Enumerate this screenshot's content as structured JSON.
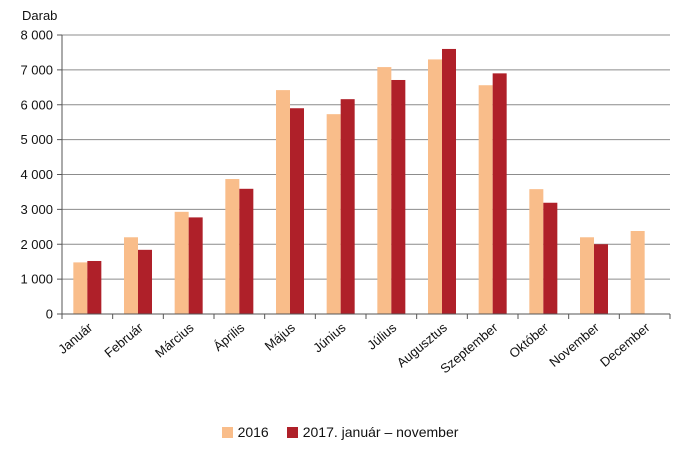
{
  "chart_data": {
    "type": "bar",
    "ylabel": "Darab",
    "ylim": [
      0,
      8000
    ],
    "yticks": [
      0,
      1000,
      2000,
      3000,
      4000,
      5000,
      6000,
      7000,
      8000
    ],
    "ytick_labels": [
      "0",
      "1 000",
      "2 000",
      "3 000",
      "4 000",
      "5 000",
      "6 000",
      "7 000",
      "8 000"
    ],
    "grid": true,
    "legend_position": "bottom",
    "categories": [
      "Január",
      "Február",
      "Március",
      "Április",
      "Május",
      "Június",
      "Július",
      "Augusztus",
      "Szeptember",
      "Október",
      "November",
      "December"
    ],
    "series": [
      {
        "name": "2016",
        "color": "#F9BD8A",
        "values": [
          1480,
          2200,
          2930,
          3870,
          6420,
          5730,
          7080,
          7300,
          6560,
          3580,
          2200,
          2380
        ]
      },
      {
        "name": "2017. január – november",
        "color": "#AF2029",
        "values": [
          1520,
          1840,
          2770,
          3590,
          5900,
          6160,
          6710,
          7600,
          6900,
          3190,
          2000,
          null
        ]
      }
    ]
  }
}
